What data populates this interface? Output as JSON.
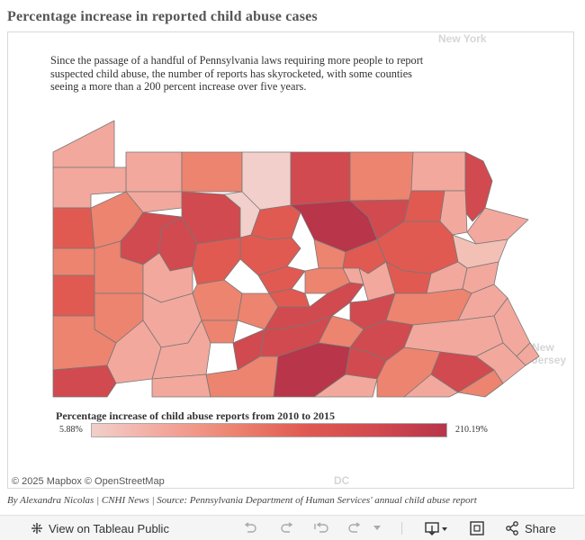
{
  "title": "Percentage increase in reported child abuse cases",
  "description": "Since the passage of a handful of Pennsylvania laws requiring more people to report suspected child abuse, the number of reports has skyrocketed, with some counties seeing a more than a 200 percent increase over five years.",
  "map_labels": {
    "new_york": "New York",
    "new_jersey": "New Jersey",
    "dc": "DC"
  },
  "legend": {
    "title": "Percentage increase of child abuse reports from 2010 to 2015",
    "min": "5.88%",
    "max": "210.19%",
    "colors": [
      "#f2cfca",
      "#f3a89d",
      "#ec8470",
      "#e05a52",
      "#d14a4f",
      "#b8354a"
    ]
  },
  "attribution": "© 2025 Mapbox © OpenStreetMap",
  "credit": "By Alexandra Nicolas | CNHI News | Source: Pennsylvania Department of Human Services' annual child abuse report",
  "toolbar": {
    "view_public": "View on Tableau Public",
    "share": "Share"
  },
  "icons": {
    "tableau": "tableau-logo-icon",
    "undo": "undo-icon",
    "redo": "redo-icon",
    "revert": "revert-icon",
    "forward": "forward-icon",
    "download": "download-icon",
    "fullscreen": "fullscreen-icon",
    "share": "share-icon"
  }
}
